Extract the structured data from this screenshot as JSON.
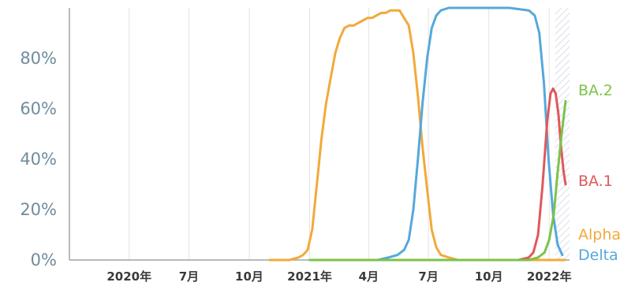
{
  "colors": {
    "background": "#ffffff",
    "grid": "#e4e4e4",
    "axis": "#9aa6ad",
    "hatch": "#b9c4d6",
    "Alpha": "#f2a93b",
    "Delta": "#56a8dc",
    "BA.1": "#e0585a",
    "BA.2": "#7cc34a"
  },
  "chart_data": {
    "type": "line",
    "title": "",
    "xlabel": "",
    "ylabel": "",
    "ylim": [
      0,
      100
    ],
    "x_range": [
      "2020-01-01",
      "2022-02-01"
    ],
    "yticks": [
      {
        "value": 0,
        "label": "0%"
      },
      {
        "value": 20,
        "label": "20%"
      },
      {
        "value": 40,
        "label": "40%"
      },
      {
        "value": 60,
        "label": "60%"
      },
      {
        "value": 80,
        "label": "80%"
      }
    ],
    "xticks": [
      {
        "date": "2020-04-01",
        "label": "2020年"
      },
      {
        "date": "2020-07-01",
        "label": "7月"
      },
      {
        "date": "2020-10-01",
        "label": "10月"
      },
      {
        "date": "2021-01-01",
        "label": "2021年"
      },
      {
        "date": "2021-04-01",
        "label": "4月"
      },
      {
        "date": "2021-07-01",
        "label": "7月"
      },
      {
        "date": "2021-10-01",
        "label": "10月"
      },
      {
        "date": "2022-01-01",
        "label": "2022年"
      }
    ],
    "grid": true,
    "hatched_region": [
      "2022-01-10",
      "2022-02-01"
    ],
    "series": [
      {
        "name": "Alpha",
        "points": [
          [
            "2020-11-01",
            0
          ],
          [
            "2020-12-01",
            0
          ],
          [
            "2020-12-15",
            1
          ],
          [
            "2020-12-22",
            2
          ],
          [
            "2020-12-29",
            4
          ],
          [
            "2021-01-05",
            12
          ],
          [
            "2021-01-12",
            30
          ],
          [
            "2021-01-19",
            48
          ],
          [
            "2021-01-26",
            62
          ],
          [
            "2021-02-02",
            72
          ],
          [
            "2021-02-09",
            82
          ],
          [
            "2021-02-16",
            88
          ],
          [
            "2021-02-23",
            92
          ],
          [
            "2021-03-02",
            93
          ],
          [
            "2021-03-09",
            93
          ],
          [
            "2021-03-16",
            94
          ],
          [
            "2021-03-23",
            95
          ],
          [
            "2021-03-30",
            96
          ],
          [
            "2021-04-06",
            96
          ],
          [
            "2021-04-13",
            97
          ],
          [
            "2021-04-20",
            98
          ],
          [
            "2021-04-27",
            98
          ],
          [
            "2021-05-04",
            99
          ],
          [
            "2021-05-11",
            99
          ],
          [
            "2021-05-18",
            99
          ],
          [
            "2021-05-25",
            96
          ],
          [
            "2021-06-01",
            93
          ],
          [
            "2021-06-08",
            82
          ],
          [
            "2021-06-15",
            65
          ],
          [
            "2021-06-22",
            45
          ],
          [
            "2021-06-29",
            28
          ],
          [
            "2021-07-06",
            12
          ],
          [
            "2021-07-13",
            5
          ],
          [
            "2021-07-20",
            2
          ],
          [
            "2021-08-01",
            1
          ],
          [
            "2021-08-15",
            0
          ],
          [
            "2022-01-25",
            0
          ]
        ]
      },
      {
        "name": "Delta",
        "points": [
          [
            "2021-02-01",
            0
          ],
          [
            "2021-04-15",
            0
          ],
          [
            "2021-05-01",
            1
          ],
          [
            "2021-05-15",
            2
          ],
          [
            "2021-05-25",
            4
          ],
          [
            "2021-06-01",
            8
          ],
          [
            "2021-06-08",
            20
          ],
          [
            "2021-06-15",
            40
          ],
          [
            "2021-06-22",
            62
          ],
          [
            "2021-06-29",
            80
          ],
          [
            "2021-07-06",
            92
          ],
          [
            "2021-07-13",
            97
          ],
          [
            "2021-07-20",
            99
          ],
          [
            "2021-08-01",
            100
          ],
          [
            "2021-09-01",
            100
          ],
          [
            "2021-10-01",
            100
          ],
          [
            "2021-11-01",
            100
          ],
          [
            "2021-12-01",
            99
          ],
          [
            "2021-12-10",
            97
          ],
          [
            "2021-12-17",
            90
          ],
          [
            "2021-12-24",
            70
          ],
          [
            "2021-12-31",
            40
          ],
          [
            "2022-01-07",
            18
          ],
          [
            "2022-01-14",
            6
          ],
          [
            "2022-01-21",
            2
          ]
        ]
      },
      {
        "name": "BA.1",
        "points": [
          [
            "2021-11-15",
            0
          ],
          [
            "2021-12-01",
            1
          ],
          [
            "2021-12-08",
            3
          ],
          [
            "2021-12-15",
            10
          ],
          [
            "2021-12-22",
            30
          ],
          [
            "2021-12-29",
            55
          ],
          [
            "2022-01-03",
            66
          ],
          [
            "2022-01-07",
            68
          ],
          [
            "2022-01-11",
            66
          ],
          [
            "2022-01-15",
            58
          ],
          [
            "2022-01-19",
            45
          ],
          [
            "2022-01-23",
            35
          ],
          [
            "2022-01-26",
            30
          ]
        ]
      },
      {
        "name": "BA.2",
        "points": [
          [
            "2021-01-01",
            0
          ],
          [
            "2021-12-01",
            0
          ],
          [
            "2021-12-15",
            1
          ],
          [
            "2021-12-25",
            3
          ],
          [
            "2022-01-01",
            8
          ],
          [
            "2022-01-08",
            18
          ],
          [
            "2022-01-14",
            35
          ],
          [
            "2022-01-20",
            50
          ],
          [
            "2022-01-26",
            63
          ]
        ]
      }
    ]
  }
}
